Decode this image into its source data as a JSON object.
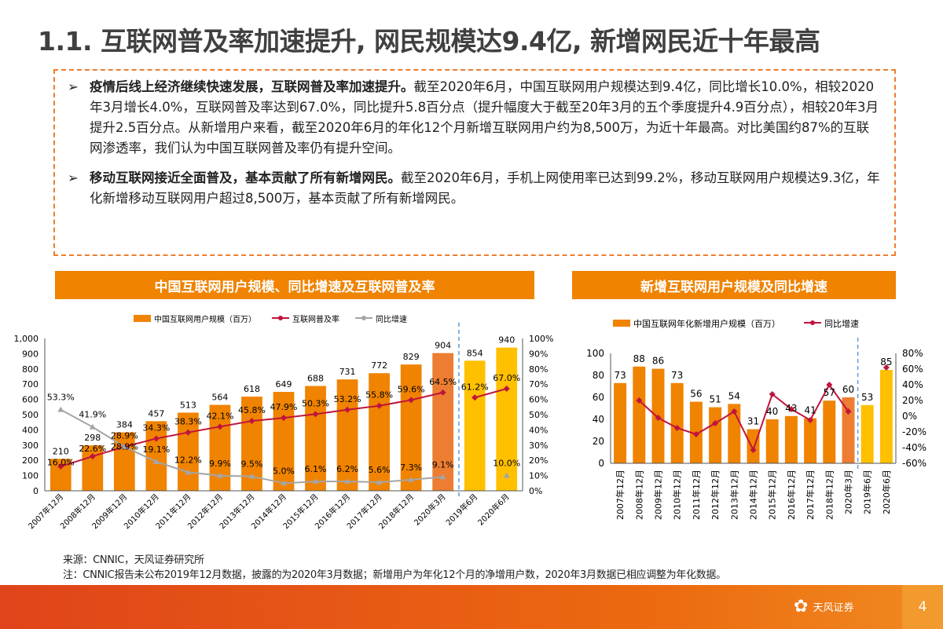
{
  "title": "1.1. 互联网普及率加速提升, 网民规模达9.4亿, 新增网民近十年最高",
  "bullets": [
    {
      "icon": "arrow-bullet-icon",
      "bold": "疫情后线上经济继续快速发展，互联网普及率加速提升。",
      "text": "截至2020年6月，中国互联网用户规模达到9.4亿，同比增长10.0%，相较2020年3月增长4.0%，互联网普及率达到67.0%，同比提升5.8百分点（提升幅度大于截至20年3月的五个季度提升4.9百分点），相较20年3月提升2.5百分点。从新增用户来看，截至2020年6月的年化12个月新增互联网用户约为8,500万，为近十年最高。对比美国约87%的互联网渗透率，我们认为中国互联网普及率仍有提升空间。"
    },
    {
      "icon": "arrow-bullet-icon",
      "bold": "移动互联网接近全面普及，基本贡献了所有新增网民。",
      "text": "截至2020年6月，手机上网使用率已达到99.2%，移动互联网用户规模达9.3亿，年化新增移动互联网用户超过8,500万，基本贡献了所有新增网民。"
    }
  ],
  "colors": {
    "bar": "#f08300",
    "bar_2020_3": "#ed7d31",
    "bar_jun": "#ffc000",
    "penetration": "#c0143c",
    "growth_gray": "#a5a5a5",
    "footer": "#e8561a"
  },
  "chart_data": [
    {
      "type": "bar",
      "title": "中国互联网用户规模、同比增速及互联网普及率",
      "categories": [
        "2007年12月",
        "2008年12月",
        "2009年12月",
        "2010年12月",
        "2011年12月",
        "2012年12月",
        "2013年12月",
        "2014年12月",
        "2015年12月",
        "2016年12月",
        "2017年12月",
        "2018年12月",
        "2020年3月",
        "2019年6月",
        "2020年6月"
      ],
      "y_left": {
        "range": [
          0,
          1000
        ],
        "ticks": [
          "0",
          "100",
          "200",
          "300",
          "400",
          "500",
          "600",
          "700",
          "800",
          "900",
          "1,000"
        ]
      },
      "y_right": {
        "range": [
          0,
          100
        ],
        "ticks": [
          "0%",
          "10%",
          "20%",
          "30%",
          "40%",
          "50%",
          "60%",
          "70%",
          "80%",
          "90%",
          "100%"
        ]
      },
      "legend_position": "top",
      "series": [
        {
          "name": "中国互联网用户规模（百万）",
          "type": "bar",
          "axis": "left",
          "values": [
            210,
            298,
            384,
            457,
            513,
            564,
            618,
            649,
            688,
            731,
            772,
            829,
            904,
            854,
            940
          ]
        },
        {
          "name": "互联网普及率",
          "type": "line",
          "axis": "right",
          "values": [
            16.0,
            22.6,
            28.9,
            34.3,
            38.3,
            42.1,
            45.8,
            47.9,
            50.3,
            53.2,
            55.8,
            59.6,
            64.5,
            61.2,
            67.0
          ]
        },
        {
          "name": "同比增速",
          "type": "line",
          "axis": "right",
          "values": [
            53.3,
            41.9,
            28.9,
            19.1,
            12.2,
            9.9,
            9.5,
            5.0,
            6.1,
            6.2,
            5.6,
            7.3,
            9.1,
            null,
            10.0
          ]
        }
      ]
    },
    {
      "type": "bar",
      "title": "新增互联网用户规模及同比增速",
      "categories": [
        "2007年12月",
        "2008年12月",
        "2009年12月",
        "2010年12月",
        "2011年12月",
        "2012年12月",
        "2013年12月",
        "2014年12月",
        "2015年12月",
        "2016年12月",
        "2017年12月",
        "2018年12月",
        "2020年3月",
        "2019年6月",
        "2020年6月"
      ],
      "y_left": {
        "range": [
          0,
          100
        ],
        "ticks": [
          "0",
          "20",
          "40",
          "60",
          "80",
          "100"
        ]
      },
      "y_right": {
        "range": [
          -60,
          80
        ],
        "ticks": [
          "-60%",
          "-40%",
          "-20%",
          "0%",
          "20%",
          "40%",
          "60%",
          "80%"
        ]
      },
      "legend_position": "top",
      "series": [
        {
          "name": "中国互联网年化新增用户规模（百万）",
          "type": "bar",
          "axis": "left",
          "values": [
            73,
            88,
            86,
            73,
            56,
            51,
            54,
            31,
            40,
            43,
            41,
            57,
            60,
            53,
            85
          ]
        },
        {
          "name": "同比增速",
          "type": "line",
          "axis": "right",
          "values": [
            null,
            20,
            -2,
            -15,
            -23,
            -9,
            6,
            -43,
            28,
            9,
            -5,
            40,
            6,
            null,
            62
          ]
        }
      ]
    }
  ],
  "source": "来源：CNNIC，天风证券研究所",
  "note": "注：CNNIC报告未公布2019年12月数据，披露的为2020年3月数据；新增用户为年化12个月的净增用户数，2020年3月数据已相应调整为年化数据。",
  "footer": {
    "logo": "天风证券",
    "page": "4"
  }
}
